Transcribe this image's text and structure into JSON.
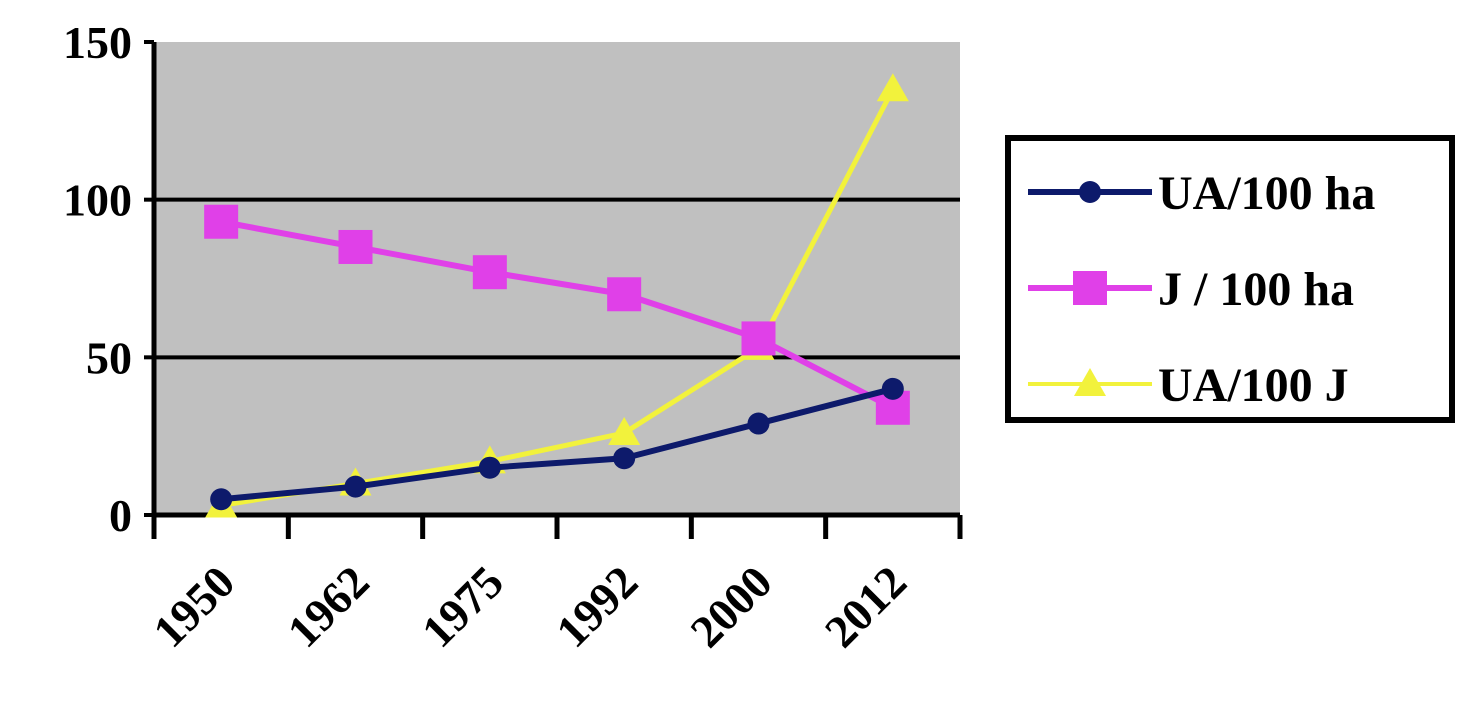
{
  "chart_data": {
    "type": "line",
    "categories": [
      "1950",
      "1962",
      "1975",
      "1992",
      "2000",
      "2012"
    ],
    "ylim": [
      0,
      150
    ],
    "yticks": [
      "0",
      "50",
      "100",
      "150"
    ],
    "grid": true,
    "legend_position": "right",
    "plot_background": "#c0c0c0",
    "series": [
      {
        "name": "UA/100 ha",
        "color": "#0d1a6b",
        "marker": "diamond",
        "values": [
          5,
          9,
          15,
          18,
          29,
          40
        ]
      },
      {
        "name": "J / 100 ha",
        "color": "#e040e8",
        "marker": "square",
        "values": [
          93,
          85,
          77,
          70,
          56,
          34
        ]
      },
      {
        "name": "UA/100 J",
        "color": "#f2f23c",
        "marker": "triangle",
        "values": [
          3,
          10,
          17,
          26,
          53,
          135
        ]
      }
    ]
  }
}
